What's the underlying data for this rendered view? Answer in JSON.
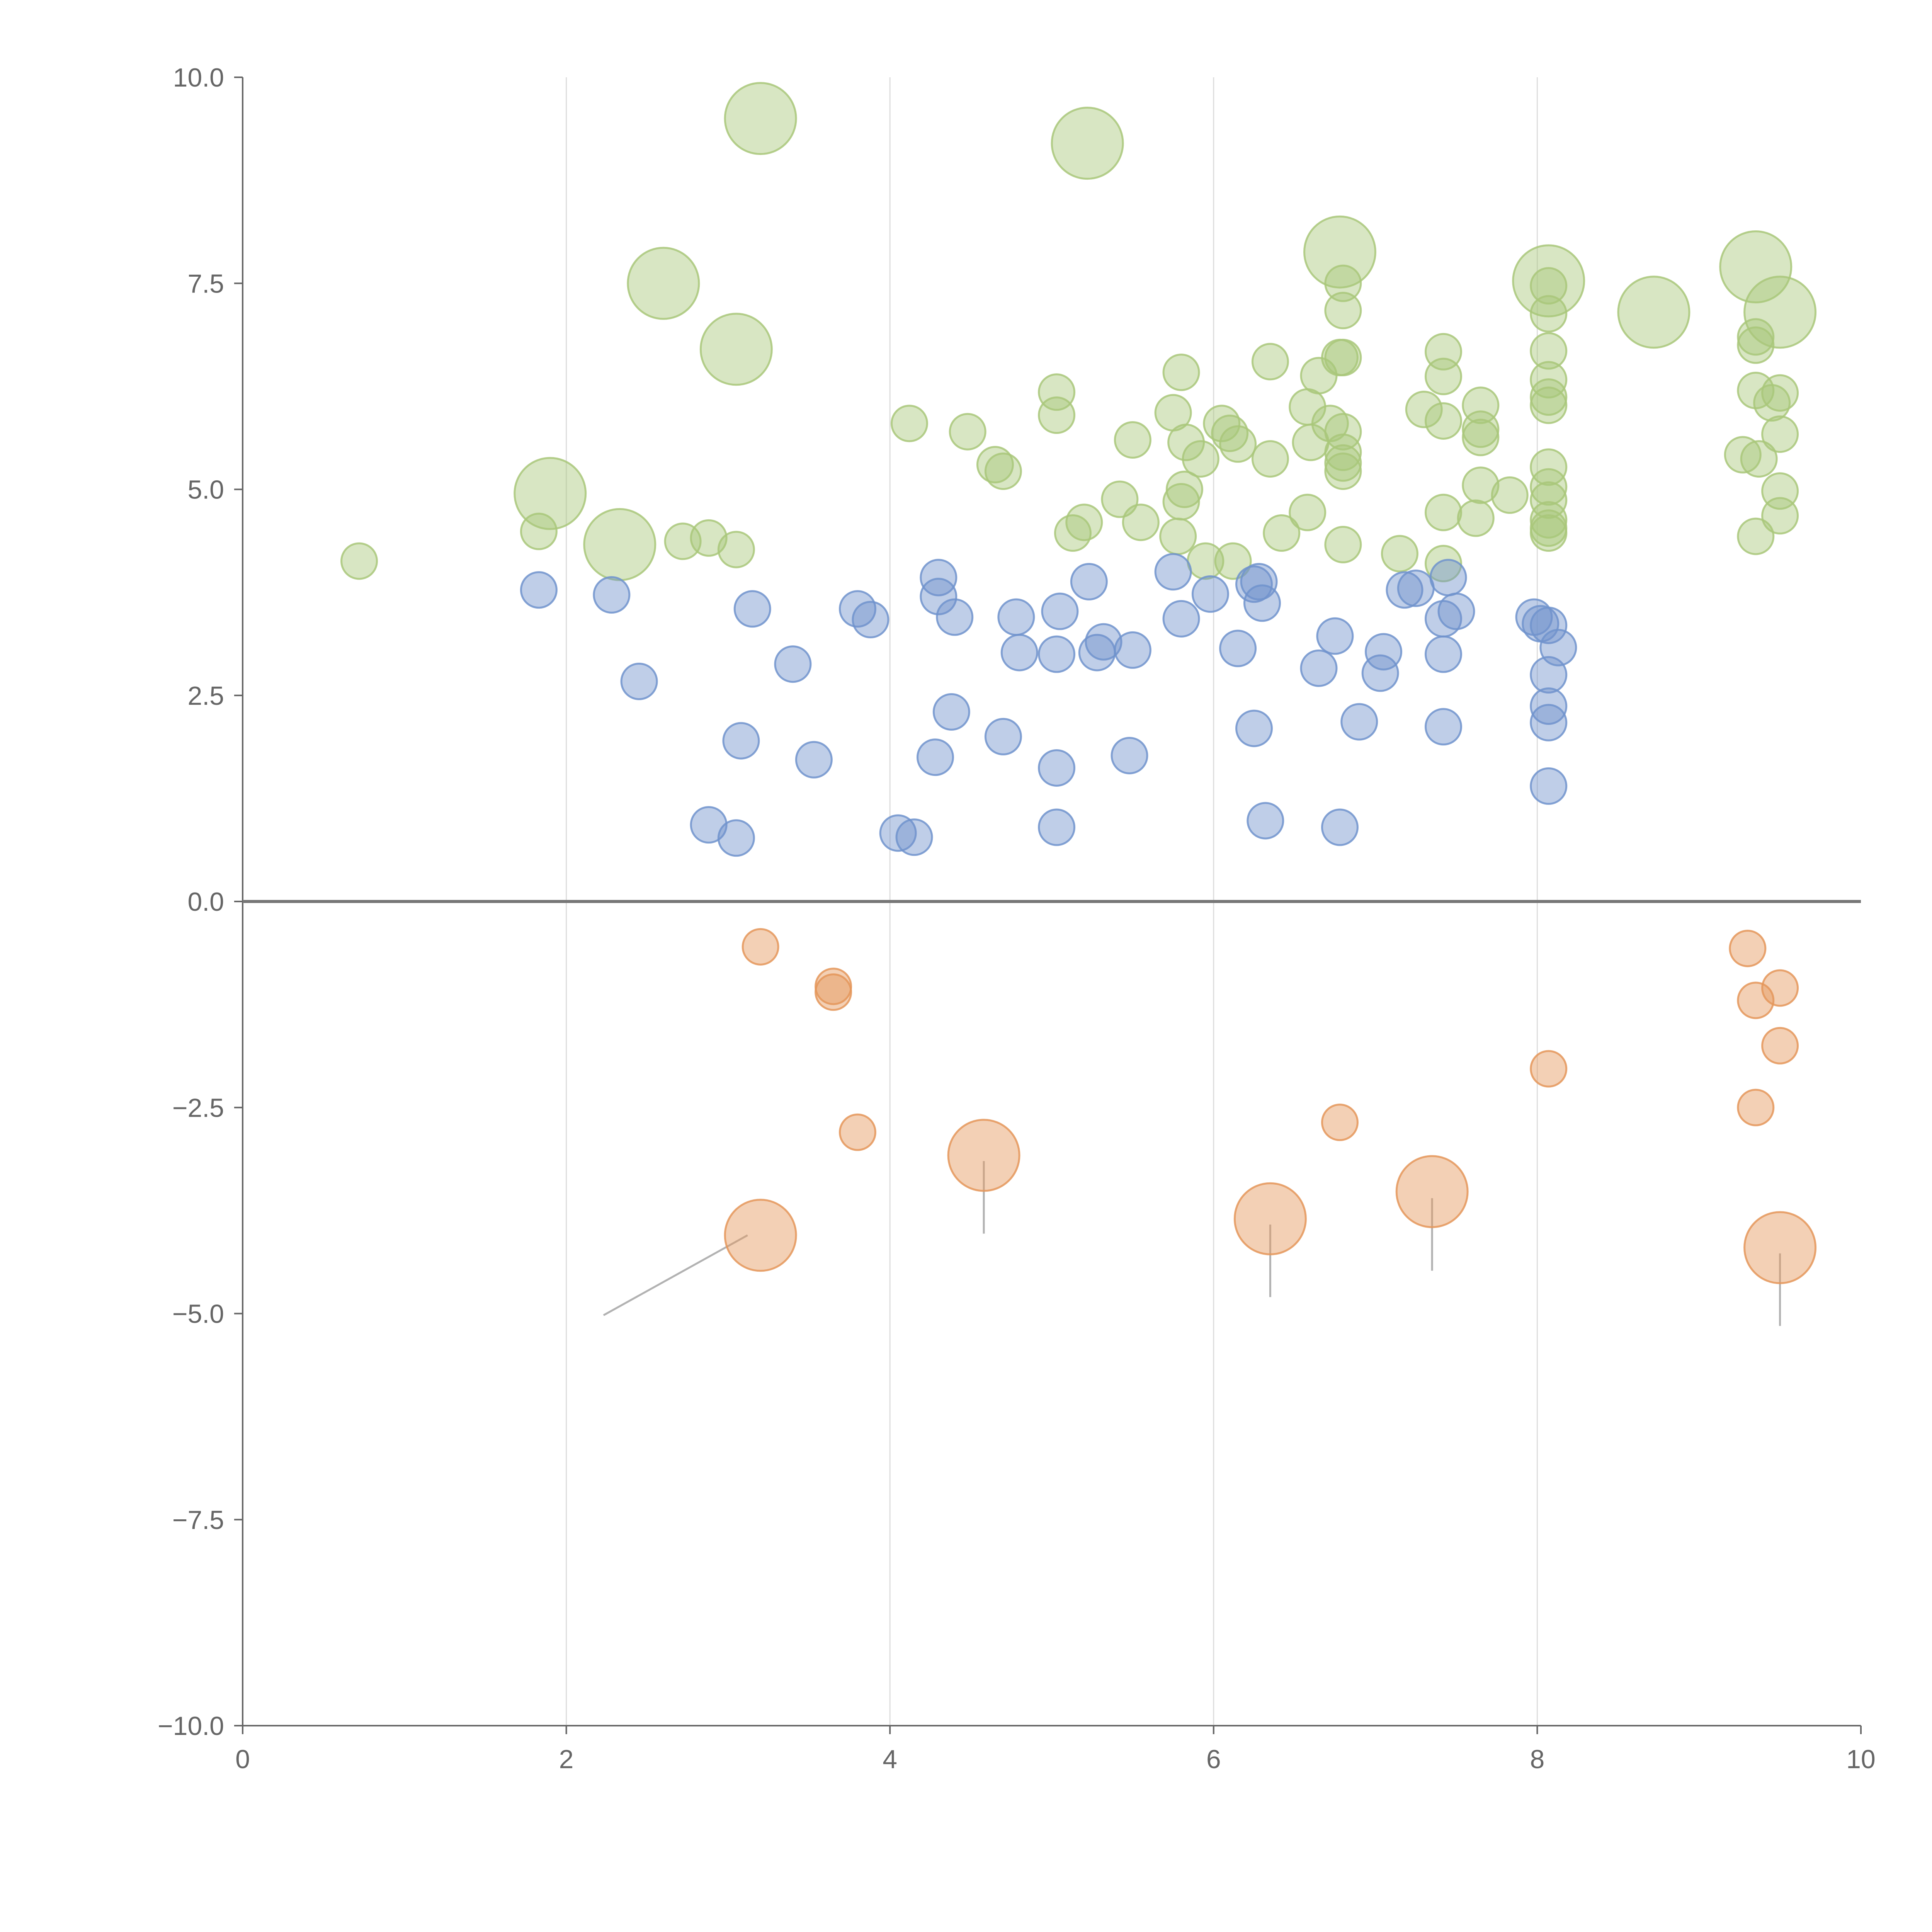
{
  "chart_data": {
    "type": "scatter",
    "title": "",
    "xlabel": "",
    "ylabel": "",
    "xlim": [
      0,
      10
    ],
    "ylim": [
      -10,
      10
    ],
    "grid": "vertical",
    "x_ticks": [
      "0",
      "2",
      "4",
      "6",
      "8",
      "10"
    ],
    "y_ticks": [
      "10.0",
      "7.5",
      "5.0",
      "2.5",
      "0.0",
      "−2.5",
      "−5.0",
      "−7.5",
      "−10.0"
    ],
    "colors": {
      "green": "#a9c77a",
      "blue": "#7093cd",
      "orange": "#e4975a",
      "leader": "#aaaaaa"
    },
    "series": [
      {
        "name": "green",
        "color": "#a9c77a",
        "points": [
          [
            0.72,
            4.13,
            "s"
          ],
          [
            1.83,
            4.49,
            "s"
          ],
          [
            1.9,
            4.95,
            "L"
          ],
          [
            2.33,
            4.33,
            "L"
          ],
          [
            2.6,
            7.5,
            "L"
          ],
          [
            2.72,
            4.37,
            "s"
          ],
          [
            2.88,
            4.41,
            "s"
          ],
          [
            3.05,
            6.7,
            "L"
          ],
          [
            3.05,
            4.27,
            "s"
          ],
          [
            3.2,
            9.5,
            "L"
          ],
          [
            4.12,
            5.8,
            "s"
          ],
          [
            4.48,
            5.7,
            "s"
          ],
          [
            4.65,
            5.3,
            "s"
          ],
          [
            4.7,
            5.22,
            "s"
          ],
          [
            5.03,
            6.18,
            "s"
          ],
          [
            5.03,
            5.9,
            "s"
          ],
          [
            5.13,
            4.47,
            "s"
          ],
          [
            5.2,
            4.6,
            "s"
          ],
          [
            5.22,
            9.2,
            "L"
          ],
          [
            5.42,
            4.88,
            "s"
          ],
          [
            5.5,
            5.6,
            "s"
          ],
          [
            5.55,
            4.6,
            "s"
          ],
          [
            5.75,
            5.93,
            "s"
          ],
          [
            5.8,
            6.42,
            "s"
          ],
          [
            5.8,
            4.85,
            "s"
          ],
          [
            5.82,
            5.0,
            "s"
          ],
          [
            5.78,
            4.43,
            "s"
          ],
          [
            5.83,
            5.57,
            "s"
          ],
          [
            5.92,
            5.37,
            "s"
          ],
          [
            5.95,
            4.13,
            "s"
          ],
          [
            6.05,
            5.8,
            "s"
          ],
          [
            6.1,
            5.68,
            "s"
          ],
          [
            6.15,
            5.55,
            "s"
          ],
          [
            6.12,
            4.13,
            "s"
          ],
          [
            6.35,
            6.55,
            "s"
          ],
          [
            6.35,
            5.37,
            "s"
          ],
          [
            6.42,
            4.47,
            "s"
          ],
          [
            6.58,
            6.0,
            "s"
          ],
          [
            6.6,
            5.57,
            "s"
          ],
          [
            6.58,
            4.72,
            "s"
          ],
          [
            6.65,
            6.38,
            "s"
          ],
          [
            6.72,
            5.8,
            "s"
          ],
          [
            6.78,
            7.88,
            "L"
          ],
          [
            6.8,
            7.5,
            "s"
          ],
          [
            6.8,
            7.17,
            "s"
          ],
          [
            6.78,
            6.6,
            "s"
          ],
          [
            6.8,
            6.6,
            "s"
          ],
          [
            6.8,
            5.7,
            "s"
          ],
          [
            6.8,
            5.45,
            "s"
          ],
          [
            6.8,
            5.32,
            "s"
          ],
          [
            6.8,
            5.22,
            "s"
          ],
          [
            6.8,
            4.33,
            "s"
          ],
          [
            7.15,
            4.22,
            "s"
          ],
          [
            7.3,
            5.97,
            "s"
          ],
          [
            7.42,
            6.67,
            "s"
          ],
          [
            7.42,
            6.37,
            "s"
          ],
          [
            7.42,
            5.83,
            "s"
          ],
          [
            7.42,
            4.72,
            "s"
          ],
          [
            7.42,
            4.1,
            "s"
          ],
          [
            7.62,
            4.65,
            "s"
          ],
          [
            7.65,
            6.02,
            "s"
          ],
          [
            7.65,
            5.73,
            "s"
          ],
          [
            7.65,
            5.63,
            "s"
          ],
          [
            7.65,
            5.05,
            "s"
          ],
          [
            7.83,
            4.93,
            "s"
          ],
          [
            8.07,
            7.53,
            "L"
          ],
          [
            8.07,
            7.47,
            "s"
          ],
          [
            8.07,
            7.13,
            "s"
          ],
          [
            8.07,
            6.68,
            "s"
          ],
          [
            8.07,
            6.33,
            "s"
          ],
          [
            8.07,
            6.12,
            "s"
          ],
          [
            8.07,
            6.02,
            "s"
          ],
          [
            8.07,
            5.27,
            "s"
          ],
          [
            8.07,
            5.03,
            "s"
          ],
          [
            8.07,
            4.87,
            "s"
          ],
          [
            8.07,
            4.63,
            "s"
          ],
          [
            8.07,
            4.53,
            "s"
          ],
          [
            8.07,
            4.47,
            "s"
          ],
          [
            8.72,
            7.15,
            "L"
          ],
          [
            9.27,
            5.42,
            "s"
          ],
          [
            9.35,
            7.7,
            "L"
          ],
          [
            9.35,
            6.85,
            "s"
          ],
          [
            9.35,
            6.75,
            "s"
          ],
          [
            9.35,
            6.2,
            "s"
          ],
          [
            9.37,
            5.37,
            "s"
          ],
          [
            9.35,
            4.43,
            "s"
          ],
          [
            9.45,
            6.05,
            "s"
          ],
          [
            9.5,
            7.15,
            "L"
          ],
          [
            9.5,
            6.17,
            "s"
          ],
          [
            9.5,
            5.67,
            "s"
          ],
          [
            9.5,
            4.98,
            "s"
          ],
          [
            9.5,
            4.68,
            "s"
          ]
        ],
        "leaders": [
          [
            1.95,
            4.98,
            1.8,
            4.75
          ],
          [
            2.35,
            4.32,
            3.1,
            4.22
          ],
          [
            2.62,
            7.55,
            2.75,
            7.8
          ],
          [
            3.08,
            6.7,
            3.3,
            6.73
          ],
          [
            3.28,
            9.52,
            3.55,
            9.57
          ],
          [
            6.55,
            7.65,
            6.75,
            7.75
          ],
          [
            8.1,
            7.5,
            8.25,
            7.7
          ],
          [
            8.75,
            7.15,
            9.05,
            7.2
          ],
          [
            9.4,
            7.75,
            9.45,
            7.85
          ],
          [
            9.45,
            7.1,
            9.38,
            6.9
          ]
        ]
      },
      {
        "name": "blue",
        "color": "#7093cd",
        "points": [
          [
            1.83,
            3.78,
            "s"
          ],
          [
            2.28,
            3.72,
            "s"
          ],
          [
            2.45,
            2.67,
            "s"
          ],
          [
            2.88,
            0.93,
            "s"
          ],
          [
            3.05,
            0.77,
            "s"
          ],
          [
            3.08,
            1.95,
            "s"
          ],
          [
            3.15,
            3.55,
            "s"
          ],
          [
            3.4,
            2.88,
            "s"
          ],
          [
            3.53,
            1.72,
            "s"
          ],
          [
            3.8,
            3.55,
            "s"
          ],
          [
            3.88,
            3.42,
            "s"
          ],
          [
            4.05,
            0.83,
            "s"
          ],
          [
            4.15,
            0.78,
            "s"
          ],
          [
            4.28,
            1.75,
            "s"
          ],
          [
            4.3,
            3.93,
            "s"
          ],
          [
            4.3,
            3.7,
            "s"
          ],
          [
            4.38,
            2.3,
            "s"
          ],
          [
            4.4,
            3.45,
            "s"
          ],
          [
            4.7,
            2.0,
            "s"
          ],
          [
            4.78,
            3.45,
            "s"
          ],
          [
            4.8,
            3.02,
            "s"
          ],
          [
            5.03,
            0.9,
            "s"
          ],
          [
            5.03,
            1.62,
            "s"
          ],
          [
            5.03,
            3.0,
            "s"
          ],
          [
            5.05,
            3.52,
            "s"
          ],
          [
            5.23,
            3.88,
            "s"
          ],
          [
            5.28,
            3.02,
            "s"
          ],
          [
            5.32,
            3.15,
            "s"
          ],
          [
            5.48,
            1.77,
            "s"
          ],
          [
            5.5,
            3.05,
            "s"
          ],
          [
            5.75,
            4.0,
            "s"
          ],
          [
            5.8,
            3.43,
            "s"
          ],
          [
            5.98,
            3.73,
            "s"
          ],
          [
            6.15,
            3.07,
            "s"
          ],
          [
            6.25,
            2.1,
            "s"
          ],
          [
            6.25,
            3.85,
            "s"
          ],
          [
            6.28,
            3.88,
            "s"
          ],
          [
            6.3,
            3.62,
            "s"
          ],
          [
            6.32,
            0.98,
            "s"
          ],
          [
            6.65,
            2.83,
            "s"
          ],
          [
            6.75,
            3.22,
            "s"
          ],
          [
            6.78,
            0.9,
            "s"
          ],
          [
            6.9,
            2.18,
            "s"
          ],
          [
            7.03,
            2.77,
            "s"
          ],
          [
            7.05,
            3.03,
            "s"
          ],
          [
            7.18,
            3.78,
            "s"
          ],
          [
            7.25,
            3.8,
            "s"
          ],
          [
            7.42,
            2.12,
            "s"
          ],
          [
            7.42,
            3.0,
            "s"
          ],
          [
            7.42,
            3.43,
            "s"
          ],
          [
            7.45,
            3.93,
            "s"
          ],
          [
            7.5,
            3.52,
            "s"
          ],
          [
            7.98,
            3.45,
            "s"
          ],
          [
            8.02,
            3.37,
            "s"
          ],
          [
            8.07,
            3.35,
            "s"
          ],
          [
            8.07,
            2.75,
            "s"
          ],
          [
            8.07,
            2.37,
            "s"
          ],
          [
            8.07,
            2.17,
            "s"
          ],
          [
            8.07,
            1.4,
            "s"
          ],
          [
            8.13,
            3.08,
            "s"
          ]
        ],
        "leaders": []
      },
      {
        "name": "orange",
        "color": "#e4975a",
        "points": [
          [
            3.2,
            -0.55,
            "s"
          ],
          [
            3.65,
            -1.03,
            "s"
          ],
          [
            3.65,
            -1.1,
            "s"
          ],
          [
            3.8,
            -2.8,
            "s"
          ],
          [
            3.2,
            -4.05,
            "L"
          ],
          [
            4.58,
            -3.08,
            "L"
          ],
          [
            6.35,
            -3.85,
            "L"
          ],
          [
            6.78,
            -2.68,
            "s"
          ],
          [
            7.35,
            -3.52,
            "L"
          ],
          [
            8.07,
            -2.03,
            "s"
          ],
          [
            9.3,
            -0.57,
            "s"
          ],
          [
            9.35,
            -1.2,
            "s"
          ],
          [
            9.35,
            -2.5,
            "s"
          ],
          [
            9.5,
            -1.05,
            "s"
          ],
          [
            9.5,
            -1.75,
            "s"
          ],
          [
            9.5,
            -4.2,
            "L"
          ]
        ],
        "leaders": [
          [
            3.12,
            -4.05,
            2.23,
            -5.02
          ],
          [
            4.58,
            -3.15,
            4.58,
            -4.03
          ],
          [
            6.35,
            -3.92,
            6.35,
            -4.8
          ],
          [
            7.35,
            -3.6,
            7.35,
            -4.48
          ],
          [
            9.5,
            -4.27,
            9.5,
            -5.15
          ]
        ]
      }
    ]
  }
}
